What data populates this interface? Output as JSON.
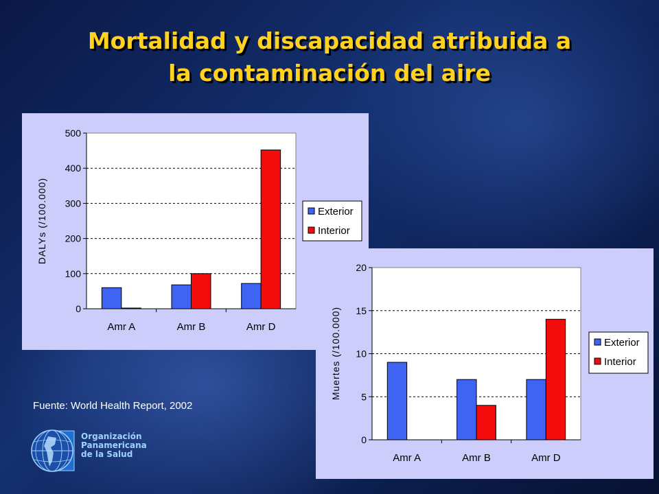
{
  "title": {
    "line1": "Mortalidad y discapacidad atribuida a",
    "line2": "la contaminación del aire"
  },
  "source": "Fuente: World Health Report, 2002",
  "logo": {
    "icon": "globe-icon",
    "line1": "Organización",
    "line2": "Panamericana",
    "line3": "de la Salud"
  },
  "colors": {
    "exterior": "#3f63f2",
    "interior": "#f20c0c",
    "panel": "#cdcdfc",
    "title": "#ffd21f"
  },
  "chart_data": [
    {
      "type": "bar",
      "ylabel": "DALYs (/100.000)",
      "xlabel": "",
      "categories": [
        "Amr A",
        "Amr B",
        "Amr D"
      ],
      "series": [
        {
          "name": "Exterior",
          "values": [
            60,
            68,
            72
          ]
        },
        {
          "name": "Interior",
          "values": [
            2,
            100,
            452
          ]
        }
      ],
      "ylim": [
        0,
        500
      ],
      "yticks": [
        0,
        100,
        200,
        300,
        400,
        500
      ],
      "grid": true,
      "legend": "right"
    },
    {
      "type": "bar",
      "ylabel": "Muertes (/100.000)",
      "xlabel": "",
      "categories": [
        "Amr A",
        "Amr B",
        "Amr D"
      ],
      "series": [
        {
          "name": "Exterior",
          "values": [
            9,
            7,
            7
          ]
        },
        {
          "name": "Interior",
          "values": [
            0,
            4,
            14
          ]
        }
      ],
      "ylim": [
        0,
        20
      ],
      "yticks": [
        0,
        5,
        10,
        15,
        20
      ],
      "grid": true,
      "legend": "right"
    }
  ]
}
